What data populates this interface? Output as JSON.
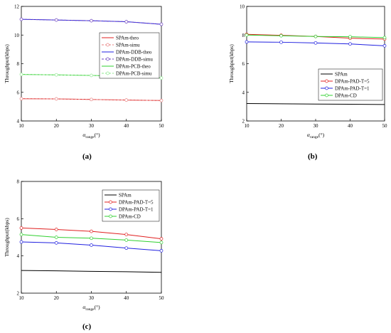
{
  "panels": [
    {
      "label": "(a)"
    },
    {
      "label": "(b)"
    },
    {
      "label": "(c)"
    }
  ],
  "chart_data": [
    {
      "type": "line",
      "ylabel": "Throughput(kbps)",
      "xlabel_main": "α",
      "xlabel_sub": "range",
      "xlabel_unit": "(°)",
      "xlim": [
        10,
        50
      ],
      "ylim": [
        4,
        12
      ],
      "x_ticks": [
        10,
        20,
        30,
        40,
        50
      ],
      "y_ticks": [
        4,
        6,
        8,
        10,
        12
      ],
      "grid": false,
      "legend_position": "right",
      "x": [
        10,
        20,
        30,
        40,
        50
      ],
      "series": [
        {
          "name": "SPAm-theo",
          "color": "#e02020",
          "style": "solid",
          "marker": "none",
          "values": [
            5.55,
            5.54,
            5.5,
            5.46,
            5.43
          ]
        },
        {
          "name": "SPAm-simu",
          "color": "#e88080",
          "style": "dashed",
          "marker": "circle",
          "values": [
            5.55,
            5.54,
            5.5,
            5.46,
            5.43
          ]
        },
        {
          "name": "DPAm-DDB-theo",
          "color": "#2020e0",
          "style": "solid",
          "marker": "none",
          "values": [
            11.1,
            11.05,
            11.0,
            10.93,
            10.75
          ]
        },
        {
          "name": "DPAm-DDB-simu",
          "color": "#6a3fbf",
          "style": "dashed",
          "marker": "circle",
          "values": [
            11.1,
            11.05,
            11.0,
            10.93,
            10.75
          ]
        },
        {
          "name": "DPAm-PCB-theo",
          "color": "#30d030",
          "style": "solid",
          "marker": "none",
          "values": [
            7.25,
            7.22,
            7.18,
            7.12,
            7.0
          ]
        },
        {
          "name": "DPAm-PCB-simu",
          "color": "#90e890",
          "style": "dashed",
          "marker": "circle",
          "values": [
            7.25,
            7.22,
            7.18,
            7.12,
            7.0
          ]
        }
      ]
    },
    {
      "type": "line",
      "ylabel": "Throughput(kbps)",
      "xlabel_main": "α",
      "xlabel_sub": "range",
      "xlabel_unit": "(°)",
      "xlim": [
        10,
        50
      ],
      "ylim": [
        2,
        10
      ],
      "x_ticks": [
        10,
        20,
        30,
        40,
        50
      ],
      "y_ticks": [
        2,
        4,
        6,
        8,
        10
      ],
      "grid": false,
      "legend_position": "right",
      "x": [
        10,
        20,
        30,
        40,
        50
      ],
      "series": [
        {
          "name": "SPAm",
          "color": "#000000",
          "style": "solid",
          "marker": "none",
          "values": [
            3.22,
            3.2,
            3.18,
            3.17,
            3.15
          ]
        },
        {
          "name": "DPAm-PAD-T=5",
          "color": "#e02020",
          "style": "solid",
          "marker": "circle",
          "values": [
            8.05,
            7.98,
            7.9,
            7.78,
            7.72
          ]
        },
        {
          "name": "DPAm-PAD-T=1",
          "color": "#2020e0",
          "style": "solid",
          "marker": "circle",
          "values": [
            7.52,
            7.5,
            7.45,
            7.38,
            7.25
          ]
        },
        {
          "name": "DPAm-CD",
          "color": "#30d030",
          "style": "solid",
          "marker": "circle",
          "values": [
            8.0,
            7.95,
            7.9,
            7.88,
            7.82
          ]
        }
      ]
    },
    {
      "type": "line",
      "ylabel": "Throughput(kbps)",
      "xlabel_main": "α",
      "xlabel_sub": "range",
      "xlabel_unit": "(°)",
      "xlim": [
        10,
        50
      ],
      "ylim": [
        2,
        8
      ],
      "x_ticks": [
        10,
        20,
        30,
        40,
        50
      ],
      "y_ticks": [
        2,
        4,
        6,
        8
      ],
      "grid": false,
      "legend_position": "top-right",
      "x": [
        10,
        20,
        30,
        40,
        50
      ],
      "series": [
        {
          "name": "SPAm",
          "color": "#000000",
          "style": "solid",
          "marker": "none",
          "values": [
            3.22,
            3.2,
            3.17,
            3.15,
            3.12
          ]
        },
        {
          "name": "DPAm-PAD-T=5",
          "color": "#e02020",
          "style": "solid",
          "marker": "circle",
          "values": [
            5.5,
            5.42,
            5.32,
            5.15,
            4.92
          ]
        },
        {
          "name": "DPAm-PAD-T=1",
          "color": "#2020e0",
          "style": "solid",
          "marker": "circle",
          "values": [
            4.75,
            4.7,
            4.58,
            4.42,
            4.28
          ]
        },
        {
          "name": "DPAm-CD",
          "color": "#30d030",
          "style": "solid",
          "marker": "circle",
          "values": [
            5.15,
            5.0,
            4.95,
            4.85,
            4.72
          ]
        }
      ]
    }
  ]
}
